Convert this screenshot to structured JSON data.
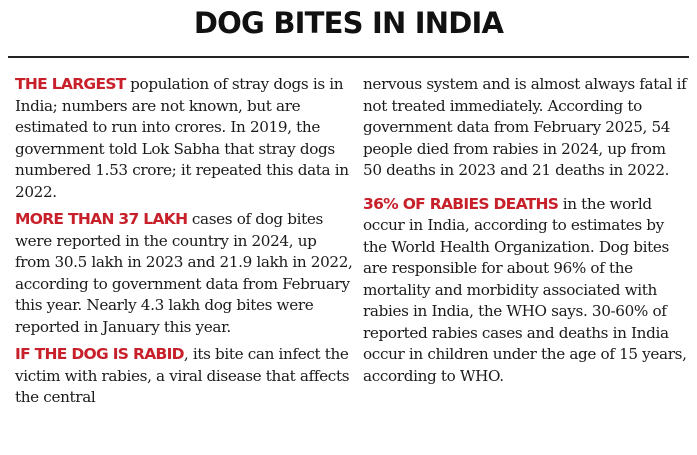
{
  "title": "DOG BITES IN INDIA",
  "accent_color": "#c8202a",
  "left_column": {
    "p1": {
      "lead": "THE LARGEST",
      "text": " population of stray dogs is in India; numbers are not known, but are estimated to run into crores. In 2019, the government told Lok Sabha that stray dogs numbered 1.53 crore; it repeated this data in 2022."
    },
    "p2": {
      "lead": "MORE THAN 37 LAKH",
      "text": " cases of dog bites were reported in the country in 2024, up from 30.5 lakh in 2023 and 21.9 lakh in 2022, according to government data from February this year. Nearly 4.3 lakh dog bites were reported in January this year."
    },
    "p3": {
      "lead": "IF THE DOG IS RABID",
      "text": ", its bite can infect the victim with rabies, a viral disease that affects the central"
    }
  },
  "right_column": {
    "p3_cont": {
      "text": "nervous system and is almost always fatal if not treated immediately. According to government data from February 2025, 54 people died from rabies in 2024, up from 50 deaths in 2023 and 21 deaths in 2022."
    },
    "p4": {
      "lead": "36% OF RABIES DEATHS",
      "text": " in the world occur in India, according to estimates by the World Health Organization. Dog bites are responsible for about 96% of the mortality and morbidity associated with rabies in India, the WHO says. 30-60% of reported rabies cases and deaths in India occur in children under the age of 15 years, according to WHO."
    }
  }
}
